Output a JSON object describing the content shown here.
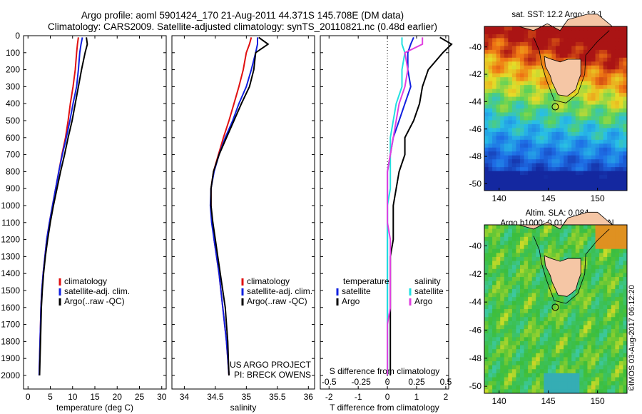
{
  "header": {
    "title_line1": "Argo profile: aoml 5901424_170 21-Aug-2011 44.371S 145.708E (DM data)",
    "title_line2": "Climatology: CARS2009. Satellite-adjusted climatology: synTS_20110821.nc (0.48d earlier)"
  },
  "maps": {
    "sst_title": "sat. SST: 12.2 Argo: 13.1",
    "sla_title_line1": "Altim. SLA: 0.084",
    "sla_title_line2": "Argo h1000: 0.014 h2000: NaN",
    "y_ticks": [
      "-40",
      "-42",
      "-44",
      "-46",
      "-48",
      "-50"
    ],
    "x_ticks": [
      "140",
      "145",
      "150"
    ],
    "lat_range": [
      -50.5,
      -38.5
    ],
    "lon_range": [
      138.5,
      153
    ],
    "argo_location": {
      "lat": -44.371,
      "lon": 145.708
    },
    "colors": {
      "land": "#f5c6a5",
      "sst_warm": "#c81414",
      "sst_cool": "#1a4fd6",
      "sla_bg": "#3cbf3c"
    }
  },
  "stamp": "©IMOS 03-Aug-2017 06:12:20",
  "colors": {
    "climatology": "#e01010",
    "satellite": "#1020e0",
    "argo": "#000000",
    "s_satellite": "#20e0e0",
    "s_argo": "#e040e0"
  },
  "chart_data": [
    {
      "type": "line",
      "xlabel": "temperature (deg C)",
      "ylabel": "",
      "xlim": [
        -1,
        31
      ],
      "ylim": [
        2080,
        0
      ],
      "x_ticks": [
        0,
        5,
        10,
        15,
        20,
        25,
        30
      ],
      "y_ticks": [
        0,
        100,
        200,
        300,
        400,
        500,
        600,
        700,
        800,
        900,
        1000,
        1100,
        1200,
        1300,
        1400,
        1500,
        1600,
        1700,
        1800,
        1900,
        2000
      ],
      "y": [
        10,
        50,
        100,
        200,
        300,
        400,
        500,
        600,
        700,
        800,
        900,
        1000,
        1100,
        1200,
        1300,
        1400,
        1500,
        1600,
        1700,
        1800,
        1900,
        2000
      ],
      "legend_location": "lower-center",
      "series": [
        {
          "name": "climatology",
          "values": [
            11.3,
            11.1,
            10.9,
            10.6,
            10.1,
            9.5,
            9.0,
            8.4,
            7.6,
            6.9,
            6.2,
            5.5,
            4.8,
            4.2,
            3.8,
            3.4,
            3.1,
            2.9,
            2.8,
            2.7,
            2.6,
            2.5
          ]
        },
        {
          "name": "satellite-adj. clim.",
          "values": [
            12.2,
            11.9,
            11.6,
            11.3,
            10.9,
            10.1,
            9.4,
            8.6,
            7.7,
            6.9,
            6.2,
            5.5,
            4.8,
            4.2,
            3.8,
            3.4,
            3.1,
            2.9,
            2.8,
            2.7,
            2.6,
            2.5
          ]
        },
        {
          "name": "Argo(..raw -QC)",
          "values": [
            13.1,
            13.3,
            12.8,
            12.0,
            11.3,
            10.6,
            9.9,
            9.0,
            8.2,
            7.3,
            6.5,
            5.7,
            5.0,
            4.4,
            3.9,
            3.5,
            3.2,
            3.0,
            2.9,
            2.8,
            2.7,
            2.6
          ]
        }
      ]
    },
    {
      "type": "line",
      "xlabel": "salinity",
      "xlim": [
        33.8,
        36.1
      ],
      "ylim": [
        2080,
        0
      ],
      "x_ticks": [
        34,
        34.5,
        35,
        35.5,
        36
      ],
      "y": [
        10,
        50,
        100,
        200,
        300,
        400,
        500,
        600,
        700,
        800,
        900,
        1000,
        1100,
        1200,
        1300,
        1400,
        1500,
        1600,
        1700,
        1800,
        1900,
        2000
      ],
      "legend_location": "lower-right",
      "annotations": [
        "US ARGO PROJECT",
        "PI: BRECK OWENS"
      ],
      "series": [
        {
          "name": "climatology",
          "values": [
            35.08,
            35.05,
            35.0,
            34.95,
            34.88,
            34.8,
            34.72,
            34.63,
            34.55,
            34.47,
            34.43,
            34.43,
            34.45,
            34.48,
            34.52,
            34.56,
            34.59,
            34.62,
            34.65,
            34.68,
            34.7,
            34.72
          ]
        },
        {
          "name": "satellite-adj. clim.",
          "values": [
            35.18,
            35.18,
            35.15,
            35.08,
            35.0,
            34.88,
            34.78,
            34.66,
            34.56,
            34.48,
            34.43,
            34.42,
            34.44,
            34.48,
            34.52,
            34.56,
            34.59,
            34.62,
            34.65,
            34.68,
            34.7,
            34.72
          ]
        },
        {
          "name": "Argo(..raw -QC)",
          "values": [
            35.2,
            35.35,
            35.15,
            35.12,
            35.05,
            34.92,
            34.8,
            34.68,
            34.56,
            34.47,
            34.43,
            34.43,
            34.46,
            34.5,
            34.54,
            34.58,
            34.62,
            34.66,
            34.68,
            34.7,
            34.71,
            34.72
          ]
        }
      ]
    },
    {
      "type": "line",
      "xlabel": "T difference from climatology",
      "xlabel_top": "S difference from climatology",
      "xlim": [
        -2.3,
        2.1
      ],
      "ylim": [
        2080,
        0
      ],
      "x_ticks": [
        -2,
        -1,
        0,
        1,
        2
      ],
      "x_ticks_top": [
        "-0.5",
        "-0.25",
        "0",
        "0.25",
        "0.5"
      ],
      "y": [
        10,
        50,
        100,
        200,
        300,
        400,
        500,
        600,
        700,
        800,
        900,
        1000,
        1100,
        1200,
        1300,
        1400,
        1500,
        1600,
        1700,
        1800,
        1900,
        2000
      ],
      "legend_location": "lower-center",
      "legend_headers": [
        "temperature",
        "salinity"
      ],
      "series": [
        {
          "name": "satellite",
          "group": "temperature",
          "values": [
            0.9,
            0.8,
            0.7,
            0.7,
            0.8,
            0.6,
            0.4,
            0.2,
            0.1,
            0.0,
            0.0,
            0.0,
            0.0,
            0.0,
            0.0,
            0.0,
            0.0,
            0.0,
            0.0,
            0.0,
            0.0,
            0.0
          ]
        },
        {
          "name": "Argo",
          "group": "temperature",
          "values": [
            1.8,
            2.2,
            1.9,
            1.4,
            1.2,
            1.1,
            0.9,
            0.6,
            0.6,
            0.4,
            0.3,
            0.2,
            0.2,
            0.2,
            0.1,
            0.1,
            0.1,
            0.1,
            0.1,
            0.1,
            0.1,
            0.1
          ]
        },
        {
          "name": "satellite",
          "group": "salinity",
          "values": [
            0.5,
            0.5,
            0.6,
            0.5,
            0.5,
            0.3,
            0.2,
            0.1,
            0.1,
            0.1,
            0.1,
            0.0,
            0.0,
            0.0,
            0.0,
            0.0,
            0.0,
            0.0,
            0.0,
            0.0,
            0.0,
            0.0
          ]
        },
        {
          "name": "Argo",
          "group": "salinity",
          "values": [
            1.2,
            1.2,
            0.6,
            0.7,
            0.6,
            0.4,
            0.3,
            0.2,
            0.1,
            0.0,
            0.0,
            0.0,
            0.0,
            0.1,
            0.1,
            0.1,
            0.1,
            0.1,
            0.0,
            0.0,
            0.0,
            0.0
          ]
        }
      ]
    }
  ]
}
